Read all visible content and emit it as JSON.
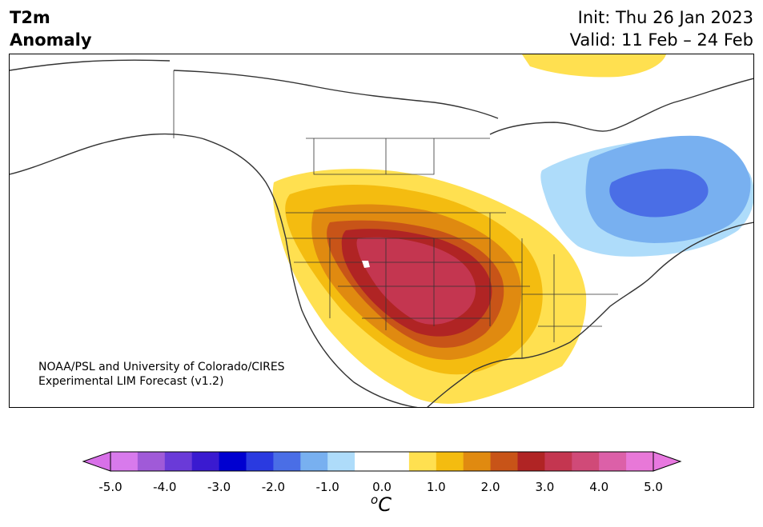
{
  "header": {
    "title_line1": "T2m",
    "title_line2": "Anomaly",
    "init": "Init: Thu 26 Jan 2023",
    "valid": "Valid: 11 Feb – 24 Feb"
  },
  "credit": {
    "line1": "NOAA/PSL and University of Colorado/CIRES",
    "line2": "Experimental LIM Forecast (v1.2)"
  },
  "colorbar": {
    "ticks": [
      "-5.0",
      "-4.0",
      "-3.0",
      "-2.0",
      "-1.0",
      "0.0",
      "1.0",
      "2.0",
      "3.0",
      "4.0",
      "5.0"
    ],
    "unit_sup": "o",
    "unit": "C",
    "colors": [
      "#d87aec",
      "#a05ad8",
      "#6a3ad8",
      "#3a1ad0",
      "#0000d0",
      "#2a3ae0",
      "#4a6ee6",
      "#78b0f0",
      "#aedcfa",
      "#ffffff",
      "#ffffff",
      "#ffe050",
      "#f4bc10",
      "#e08a10",
      "#c85418",
      "#b02424",
      "#c43650",
      "#d04a78",
      "#dc60a8",
      "#e878d8"
    ],
    "under_color": "#d870e8",
    "over_color": "#e878e0"
  }
}
